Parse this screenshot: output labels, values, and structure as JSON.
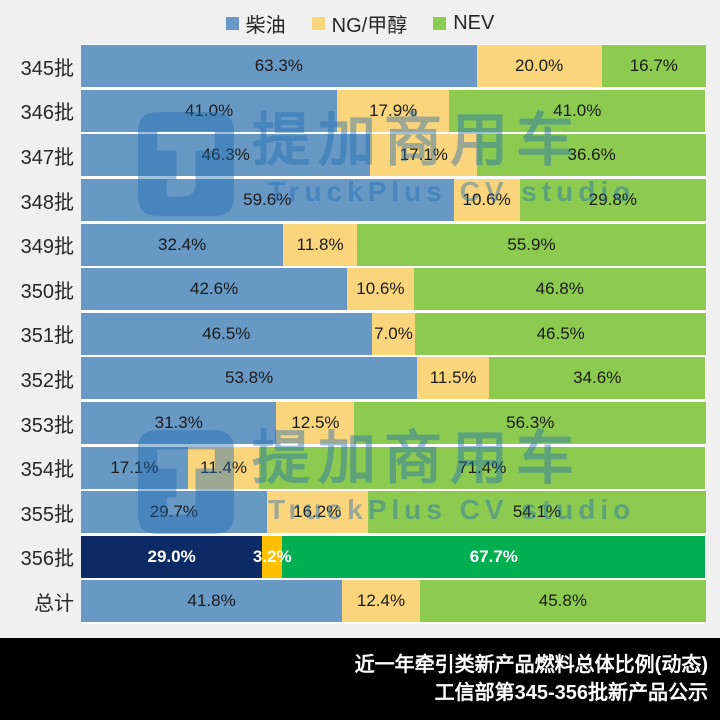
{
  "colors": {
    "background": "#F0F0F0",
    "diesel": "#6899C4",
    "ng_methanol": "#FAD57C",
    "nev": "#8DCB50",
    "diesel_highlight": "#0C2A66",
    "ng_methanol_highlight": "#FFC000",
    "nev_highlight": "#00B050",
    "watermark": "#1D6BB5",
    "footer_background": "#000000",
    "footer_text": "#FFFFFF"
  },
  "legend": [
    {
      "label": "柴油",
      "color_key": "diesel"
    },
    {
      "label": "NG/甲醇",
      "color_key": "ng_methanol"
    },
    {
      "label": "NEV",
      "color_key": "nev"
    }
  ],
  "chart_data": {
    "type": "bar",
    "orientation": "horizontal",
    "stacked": true,
    "percent_stacked": true,
    "unit": "%",
    "xlim": [
      0,
      100
    ],
    "legend_position": "top",
    "grid": false,
    "categories": [
      "345批",
      "346批",
      "347批",
      "348批",
      "349批",
      "350批",
      "351批",
      "352批",
      "353批",
      "354批",
      "355批",
      "356批",
      "总计"
    ],
    "series": [
      {
        "name": "柴油",
        "values": [
          63.3,
          41.0,
          46.3,
          59.6,
          32.4,
          42.6,
          46.5,
          53.8,
          31.3,
          17.1,
          29.7,
          29.0,
          41.8
        ]
      },
      {
        "name": "NG/甲醇",
        "values": [
          20.0,
          17.9,
          17.1,
          10.6,
          11.8,
          10.6,
          7.0,
          11.5,
          12.5,
          11.4,
          16.2,
          3.2,
          12.4
        ]
      },
      {
        "name": "NEV",
        "values": [
          16.7,
          41.0,
          36.6,
          29.8,
          55.9,
          46.8,
          46.5,
          34.6,
          56.3,
          71.4,
          54.1,
          67.7,
          45.8
        ]
      }
    ],
    "highlighted_category": "356批",
    "data_label_format": "0.0%"
  },
  "watermark": {
    "brand": "提加商用车",
    "subtext": "TruckPlus CV studio"
  },
  "footer": {
    "line1": "近一年牵引类新产品燃料总体比例(动态)",
    "line2": "工信部第345-356批新产品公示"
  }
}
